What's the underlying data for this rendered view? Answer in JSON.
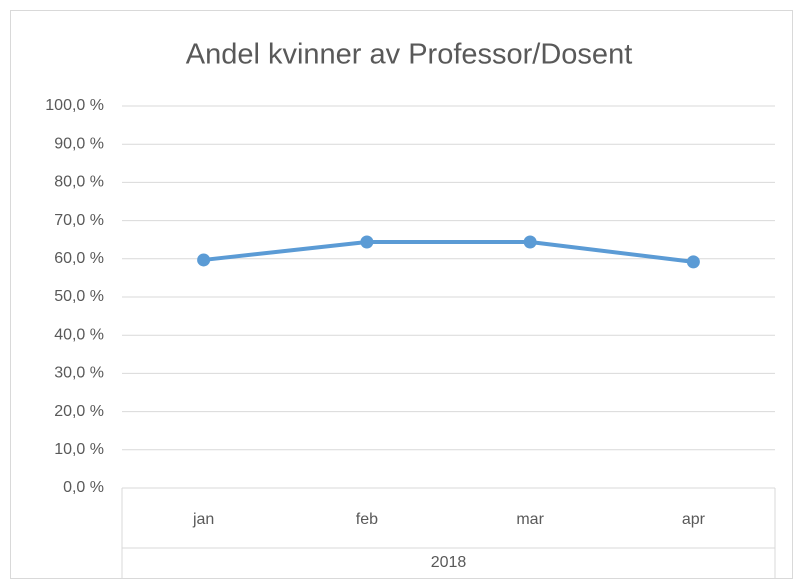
{
  "chart_data": {
    "type": "line",
    "title": "Andel kvinner av Professor/Dosent",
    "categories": [
      "jan",
      "feb",
      "mar",
      "apr"
    ],
    "category_group": "2018",
    "series": [
      {
        "name": "Andel kvinner",
        "color": "#5b9bd5",
        "values": [
          59.7,
          64.4,
          64.4,
          59.2
        ]
      }
    ],
    "ylim": [
      0,
      100
    ],
    "yticks": [
      {
        "value": 0,
        "label": "0,0 %"
      },
      {
        "value": 10,
        "label": "10,0 %"
      },
      {
        "value": 20,
        "label": "20,0 %"
      },
      {
        "value": 30,
        "label": "30,0 %"
      },
      {
        "value": 40,
        "label": "40,0 %"
      },
      {
        "value": 50,
        "label": "50,0 %"
      },
      {
        "value": 60,
        "label": "60,0 %"
      },
      {
        "value": 70,
        "label": "70,0 %"
      },
      {
        "value": 80,
        "label": "80,0 %"
      },
      {
        "value": 90,
        "label": "90,0 %"
      },
      {
        "value": 100,
        "label": "100,0 %"
      }
    ],
    "grid": true
  }
}
